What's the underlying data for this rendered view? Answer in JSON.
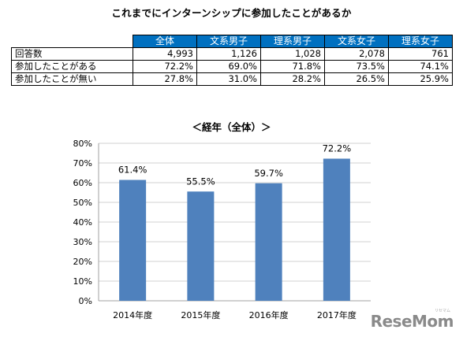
{
  "title": "これまでにインターンシップに参加したことがあるか",
  "table": {
    "headers": [
      "全体",
      "文系男子",
      "理系男子",
      "文系女子",
      "理系女子"
    ],
    "rows": [
      {
        "label": "回答数",
        "values": [
          "4,993",
          "1,126",
          "1,028",
          "2,078",
          "761"
        ]
      },
      {
        "label": "参加したことがある",
        "values": [
          "72.2%",
          "69.0%",
          "71.8%",
          "73.5%",
          "74.1%"
        ]
      },
      {
        "label": "参加したことが無い",
        "values": [
          "27.8%",
          "31.0%",
          "28.2%",
          "26.5%",
          "25.9%"
        ]
      }
    ]
  },
  "chart_data": {
    "type": "bar",
    "title": "＜経年（全体）＞",
    "categories": [
      "2014年度",
      "2015年度",
      "2016年度",
      "2017年度"
    ],
    "values": [
      61.4,
      55.5,
      59.7,
      72.2
    ],
    "data_labels": [
      "61.4%",
      "55.5%",
      "59.7%",
      "72.2%"
    ],
    "ylim": [
      0,
      80
    ],
    "yticks": [
      0,
      10,
      20,
      30,
      40,
      50,
      60,
      70,
      80
    ],
    "ytick_labels": [
      "0%",
      "10%",
      "20%",
      "30%",
      "40%",
      "50%",
      "60%",
      "70%",
      "80%"
    ],
    "grid": true,
    "bar_color": "#4f81bd"
  },
  "logo": {
    "text": "ReseMom",
    "small_text": "リセマム"
  }
}
